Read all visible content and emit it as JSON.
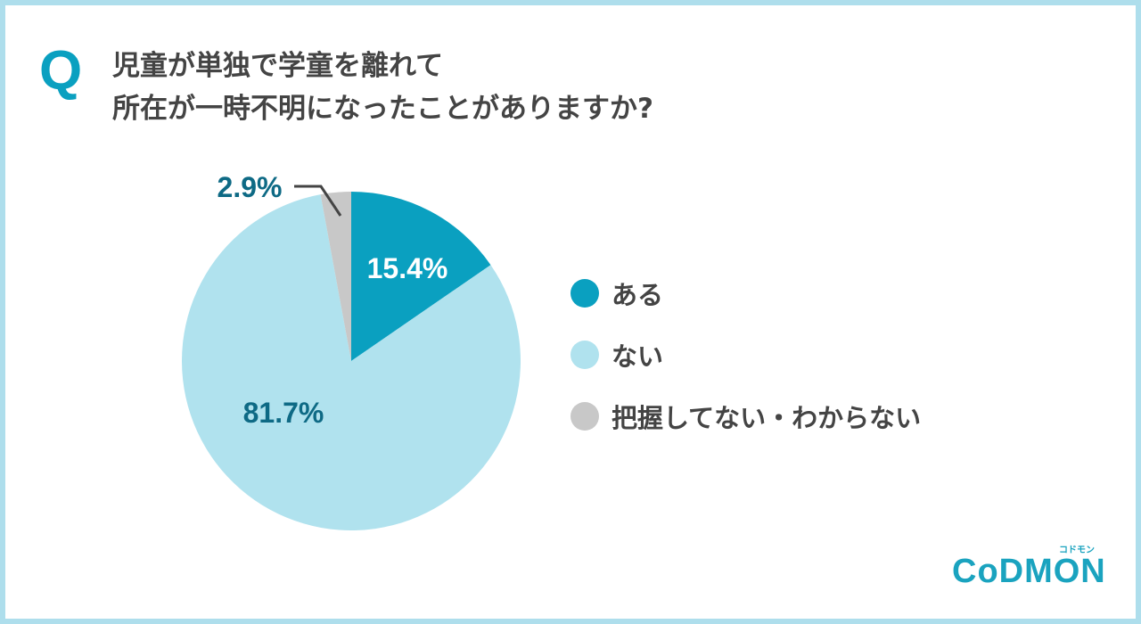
{
  "question_mark": "Q",
  "title_lines": [
    "児童が単独で学童を離れて",
    "所在が一時不明になったことがありますか?"
  ],
  "chart_data": {
    "type": "pie",
    "title": "児童が単独で学童を離れて所在が一時不明になったことがありますか?",
    "categories": [
      "ある",
      "ない",
      "把握してない・わからない"
    ],
    "values": [
      15.4,
      81.7,
      2.9
    ],
    "labels": [
      "15.4%",
      "81.7%",
      "2.9%"
    ],
    "colors": [
      "#0aa0c0",
      "#b0e2ee",
      "#c8c8c8"
    ],
    "label_color": "#0e6a85",
    "legend_position": "right"
  },
  "logo": {
    "text": "CoDMON",
    "sub": "コドモン"
  }
}
